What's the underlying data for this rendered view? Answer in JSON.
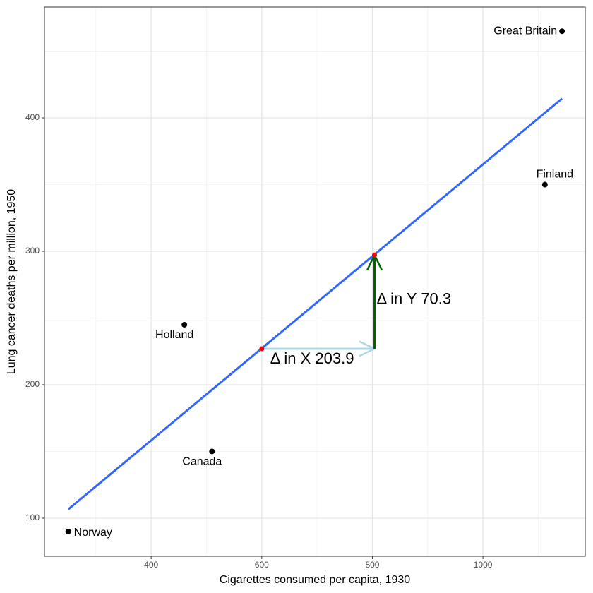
{
  "chart_data": {
    "type": "scatter",
    "xlabel": "Cigarettes consumed per capita, 1930",
    "ylabel": "Lung cancer deaths per million, 1950",
    "xlim": [
      207,
      1185
    ],
    "ylim": [
      71.4,
      483.1
    ],
    "xticks": [
      400,
      600,
      800,
      1000
    ],
    "yticks": [
      100,
      200,
      300,
      400
    ],
    "xminor": [
      300,
      500,
      700,
      900,
      1100
    ],
    "yminor": [
      150,
      250,
      350,
      450
    ],
    "grid": true,
    "color": "#000000",
    "points": {
      "names": [
        "Norway",
        "Canada",
        "Holland",
        "Finland",
        "Great Britain"
      ],
      "x": [
        250,
        510,
        460,
        1112,
        1143
      ],
      "y": [
        90,
        150,
        245,
        350,
        465
      ],
      "label_pos": [
        "right",
        "below",
        "below",
        "above",
        "left"
      ]
    },
    "fit": {
      "color": "#3366FF",
      "x": [
        250,
        1143
      ],
      "y": [
        106.6,
        414.5
      ]
    },
    "anchor_color": "#FF0000",
    "annotations": [
      {
        "label": "Δ in X 203.9",
        "color": "#ADD8E6",
        "x": [
          600,
          803.9
        ],
        "y": [
          227,
          227
        ]
      },
      {
        "label": "Δ in Y 70.3",
        "color": "#006400",
        "x": [
          803.9,
          803.9
        ],
        "y": [
          227,
          297.3
        ]
      }
    ]
  }
}
